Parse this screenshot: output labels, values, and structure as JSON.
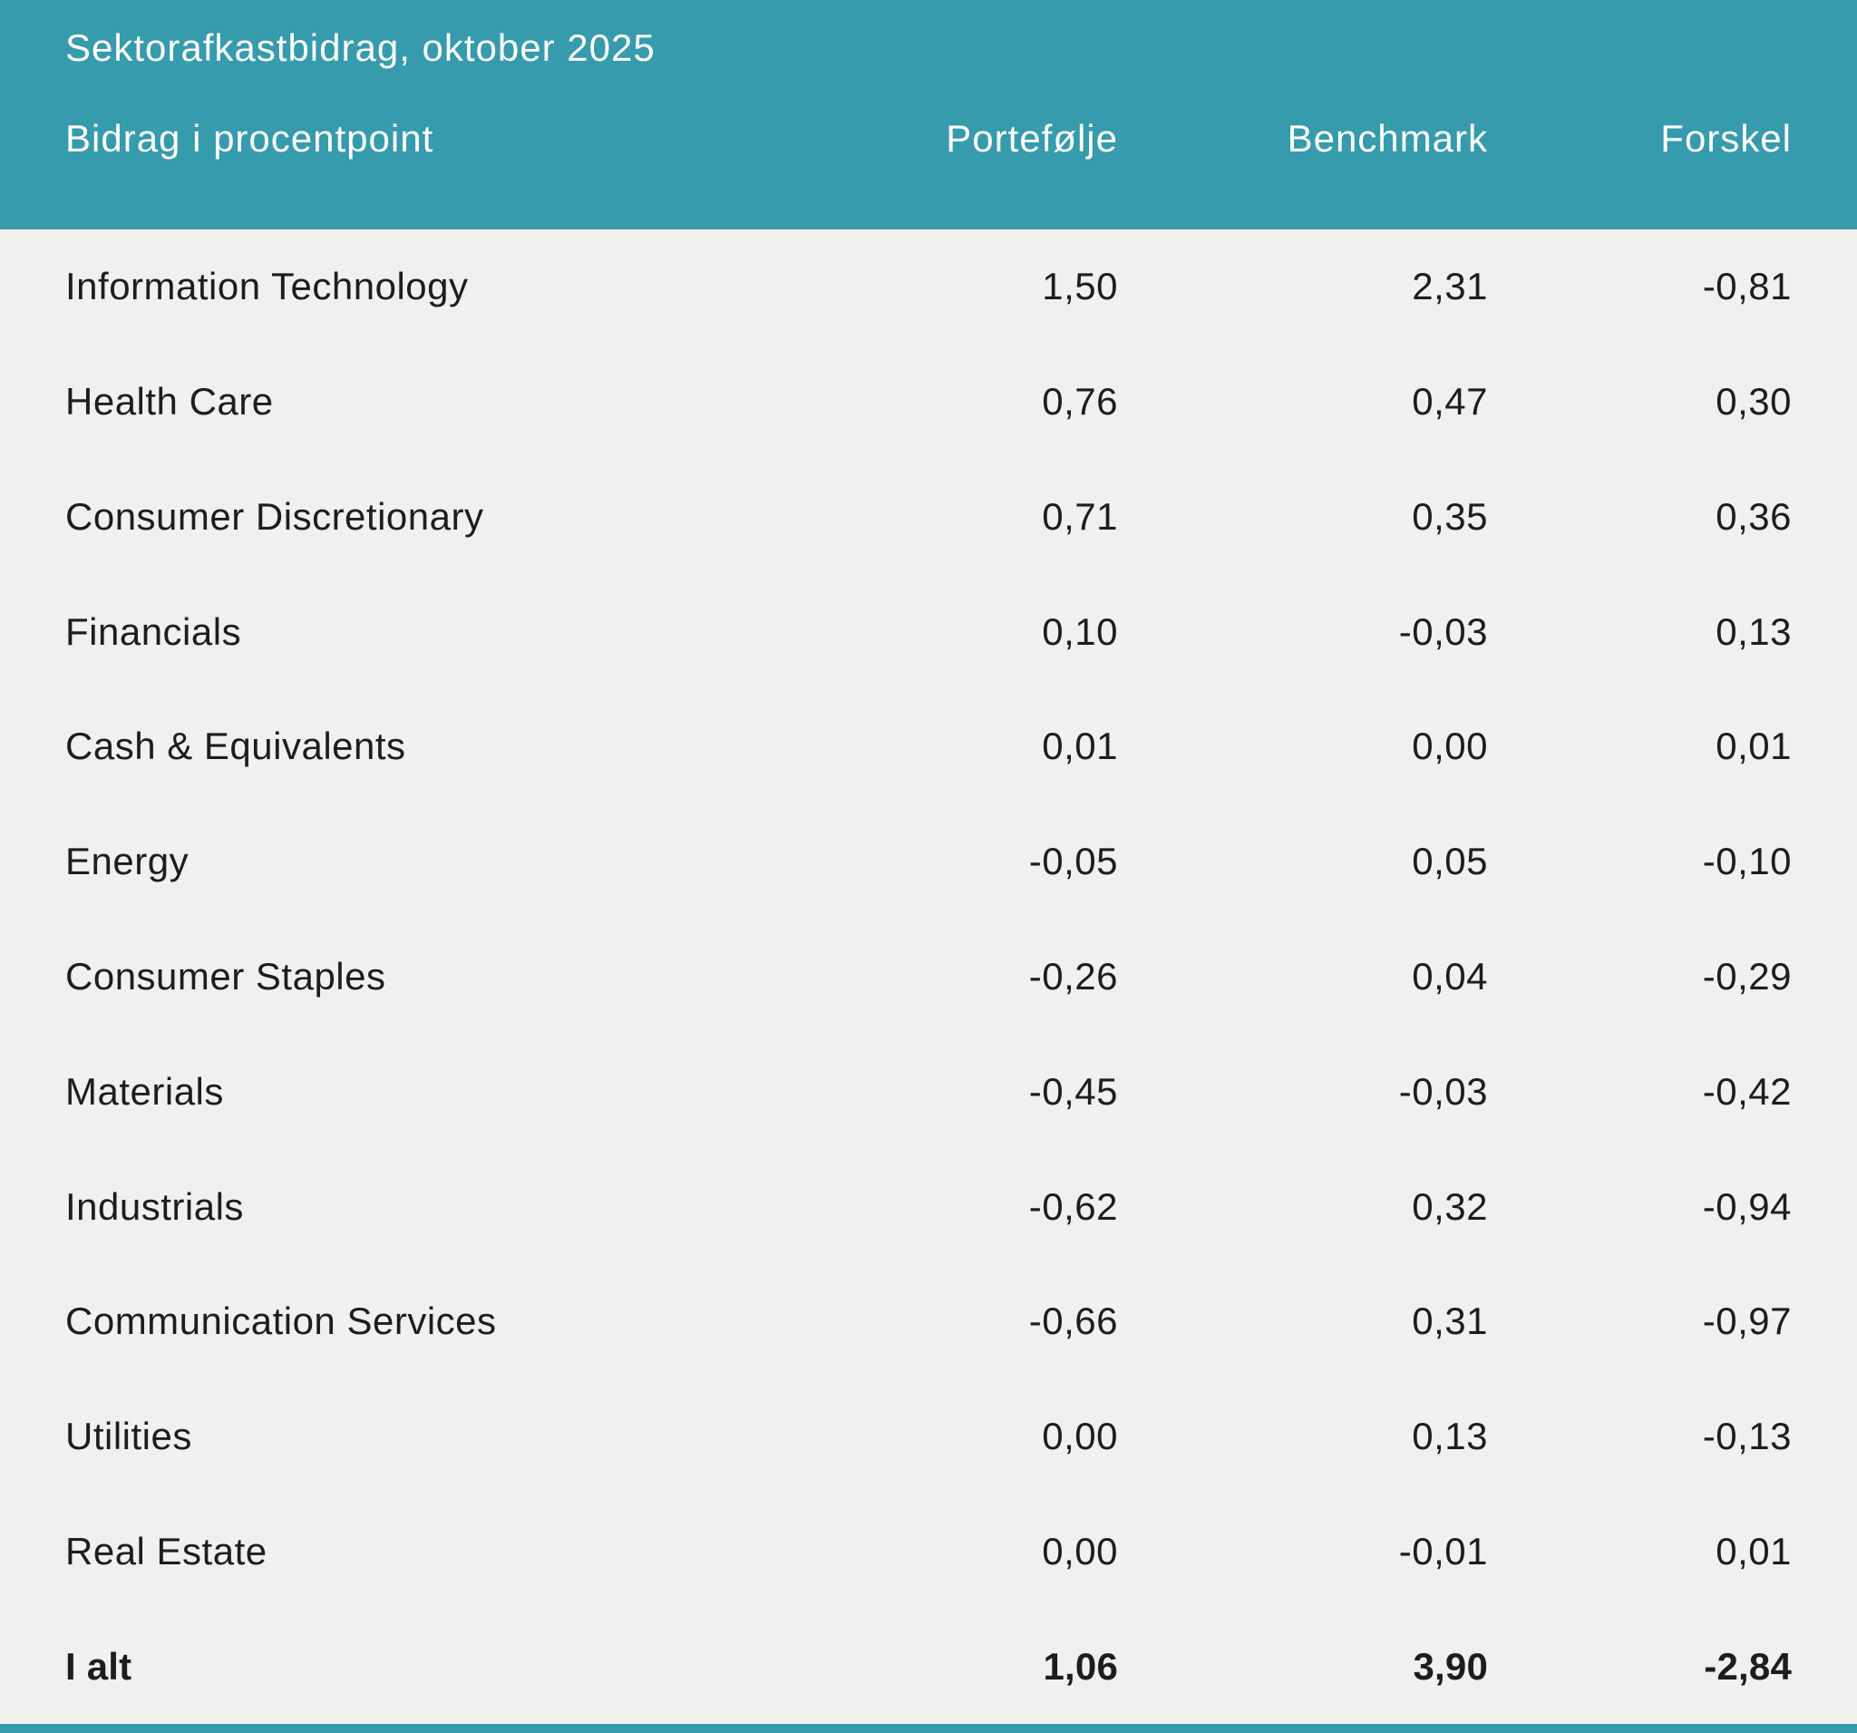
{
  "title": "Sektorafkastbidrag, oktober 2025",
  "table": {
    "header": {
      "label": "Bidrag i procentpoint",
      "col_portfolio": "Portefølje",
      "col_benchmark": "Benchmark",
      "col_difference": "Forskel"
    },
    "rows": [
      {
        "name": "Information Technology",
        "portfolio": "1,50",
        "benchmark": "2,31",
        "difference": "-0,81"
      },
      {
        "name": "Health Care",
        "portfolio": "0,76",
        "benchmark": "0,47",
        "difference": "0,30"
      },
      {
        "name": "Consumer Discretionary",
        "portfolio": "0,71",
        "benchmark": "0,35",
        "difference": "0,36"
      },
      {
        "name": "Financials",
        "portfolio": "0,10",
        "benchmark": "-0,03",
        "difference": "0,13"
      },
      {
        "name": "Cash & Equivalents",
        "portfolio": "0,01",
        "benchmark": "0,00",
        "difference": "0,01"
      },
      {
        "name": "Energy",
        "portfolio": "-0,05",
        "benchmark": "0,05",
        "difference": "-0,10"
      },
      {
        "name": "Consumer Staples",
        "portfolio": "-0,26",
        "benchmark": "0,04",
        "difference": "-0,29"
      },
      {
        "name": "Materials",
        "portfolio": "-0,45",
        "benchmark": "-0,03",
        "difference": "-0,42"
      },
      {
        "name": "Industrials",
        "portfolio": "-0,62",
        "benchmark": "0,32",
        "difference": "-0,94"
      },
      {
        "name": "Communication Services",
        "portfolio": "-0,66",
        "benchmark": "0,31",
        "difference": "-0,97"
      },
      {
        "name": "Utilities",
        "portfolio": "0,00",
        "benchmark": "0,13",
        "difference": "-0,13"
      },
      {
        "name": "Real Estate",
        "portfolio": "0,00",
        "benchmark": "-0,01",
        "difference": "0,01"
      }
    ],
    "total": {
      "name": "I alt",
      "portfolio": "1,06",
      "benchmark": "3,90",
      "difference": "-2,84"
    }
  },
  "colors": {
    "accent_teal": "#359bad",
    "body_background": "#f0f0ef",
    "body_text": "#1d1d1b",
    "header_text": "#ffffff"
  },
  "chart_data": {
    "type": "table",
    "title": "Sektorafkastbidrag, oktober 2025",
    "subtitle": "Bidrag i procentpoint",
    "columns": [
      "Bidrag i procentpoint",
      "Portefølje",
      "Benchmark",
      "Forskel"
    ],
    "decimal_separator": ",",
    "categories": [
      "Information Technology",
      "Health Care",
      "Consumer Discretionary",
      "Financials",
      "Cash & Equivalents",
      "Energy",
      "Consumer Staples",
      "Materials",
      "Industrials",
      "Communication Services",
      "Utilities",
      "Real Estate"
    ],
    "series": [
      {
        "name": "Portefølje",
        "values": [
          1.5,
          0.76,
          0.71,
          0.1,
          0.01,
          -0.05,
          -0.26,
          -0.45,
          -0.62,
          -0.66,
          0.0,
          0.0
        ],
        "total": 1.06
      },
      {
        "name": "Benchmark",
        "values": [
          2.31,
          0.47,
          0.35,
          -0.03,
          0.0,
          0.05,
          0.04,
          -0.03,
          0.32,
          0.31,
          0.13,
          -0.01
        ],
        "total": 3.9
      },
      {
        "name": "Forskel",
        "values": [
          -0.81,
          0.3,
          0.36,
          0.13,
          0.01,
          -0.1,
          -0.29,
          -0.42,
          -0.94,
          -0.97,
          -0.13,
          0.01
        ],
        "total": -2.84
      }
    ],
    "total_row_label": "I alt"
  }
}
